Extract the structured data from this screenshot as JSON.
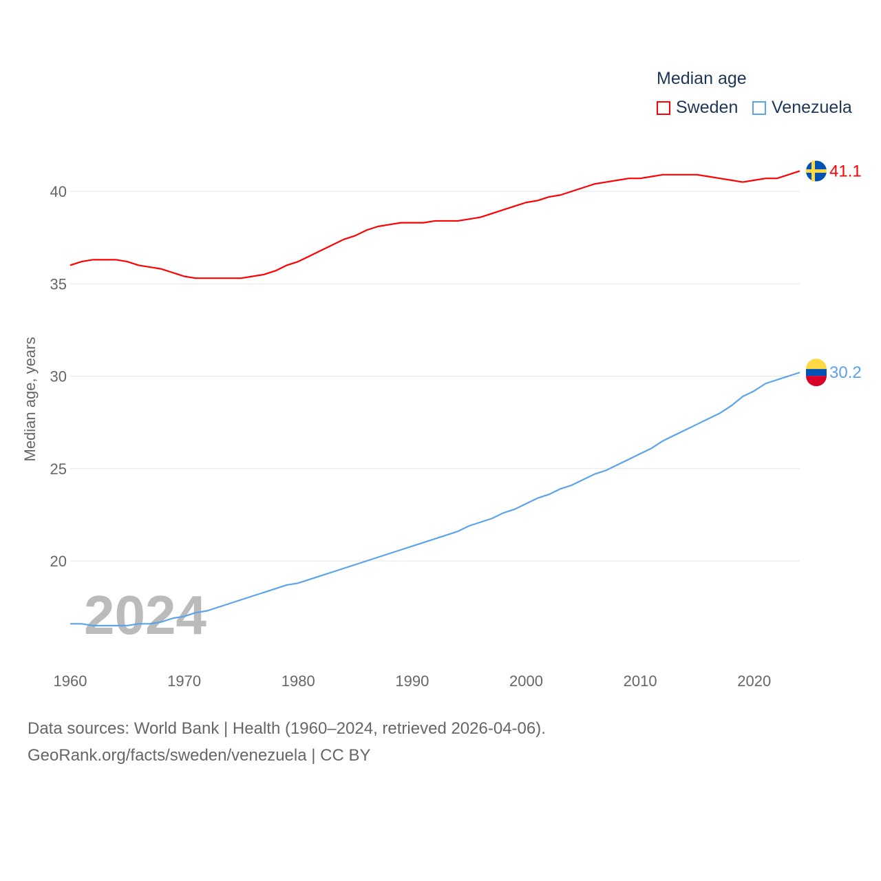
{
  "chart_data": {
    "type": "line",
    "title": "Median age",
    "ylabel": "Median age, years",
    "xlabel": "",
    "xlim": [
      1960,
      2024
    ],
    "ylim": [
      15.2,
      42.6
    ],
    "yticks": [
      20,
      25,
      30,
      35,
      40
    ],
    "xticks": [
      1960,
      1970,
      1980,
      1990,
      2000,
      2010,
      2020
    ],
    "grid": true,
    "legend_position": "top-right",
    "year_label": "2024",
    "x": [
      1960,
      1961,
      1962,
      1963,
      1964,
      1965,
      1966,
      1967,
      1968,
      1969,
      1970,
      1971,
      1972,
      1973,
      1974,
      1975,
      1976,
      1977,
      1978,
      1979,
      1980,
      1981,
      1982,
      1983,
      1984,
      1985,
      1986,
      1987,
      1988,
      1989,
      1990,
      1991,
      1992,
      1993,
      1994,
      1995,
      1996,
      1997,
      1998,
      1999,
      2000,
      2001,
      2002,
      2003,
      2004,
      2005,
      2006,
      2007,
      2008,
      2009,
      2010,
      2011,
      2012,
      2013,
      2014,
      2015,
      2016,
      2017,
      2018,
      2019,
      2020,
      2021,
      2022,
      2023,
      2024
    ],
    "series": [
      {
        "name": "Sweden",
        "color": "#ff0000",
        "end_label": "41.1",
        "flag": "sweden",
        "values": [
          36.0,
          36.2,
          36.3,
          36.3,
          36.3,
          36.2,
          36.0,
          35.9,
          35.8,
          35.6,
          35.4,
          35.3,
          35.3,
          35.3,
          35.3,
          35.3,
          35.4,
          35.5,
          35.7,
          36.0,
          36.2,
          36.5,
          36.8,
          37.1,
          37.4,
          37.6,
          37.9,
          38.1,
          38.2,
          38.3,
          38.3,
          38.3,
          38.4,
          38.4,
          38.4,
          38.5,
          38.6,
          38.8,
          39.0,
          39.2,
          39.4,
          39.5,
          39.7,
          39.8,
          40.0,
          40.2,
          40.4,
          40.5,
          40.6,
          40.7,
          40.7,
          40.8,
          40.9,
          40.9,
          40.9,
          40.9,
          40.8,
          40.7,
          40.6,
          40.5,
          40.6,
          40.7,
          40.7,
          40.9,
          41.1
        ]
      },
      {
        "name": "Venezuela",
        "color": "#5ba3ec",
        "end_label": "30.2",
        "flag": "venezuela",
        "values": [
          16.6,
          16.6,
          16.5,
          16.5,
          16.5,
          16.5,
          16.6,
          16.6,
          16.7,
          16.9,
          17.0,
          17.2,
          17.3,
          17.5,
          17.7,
          17.9,
          18.1,
          18.3,
          18.5,
          18.7,
          18.8,
          19.0,
          19.2,
          19.4,
          19.6,
          19.8,
          20.0,
          20.2,
          20.4,
          20.6,
          20.8,
          21.0,
          21.2,
          21.4,
          21.6,
          21.9,
          22.1,
          22.3,
          22.6,
          22.8,
          23.1,
          23.4,
          23.6,
          23.9,
          24.1,
          24.4,
          24.7,
          24.9,
          25.2,
          25.5,
          25.8,
          26.1,
          26.5,
          26.8,
          27.1,
          27.4,
          27.7,
          28.0,
          28.4,
          28.9,
          29.2,
          29.6,
          29.8,
          30.0,
          30.2
        ]
      }
    ]
  },
  "footer": {
    "line1": "Data sources: World Bank | Health (1960–2024, retrieved 2026-04-06).",
    "line2": "GeoRank.org/facts/sweden/venezuela | CC BY"
  }
}
